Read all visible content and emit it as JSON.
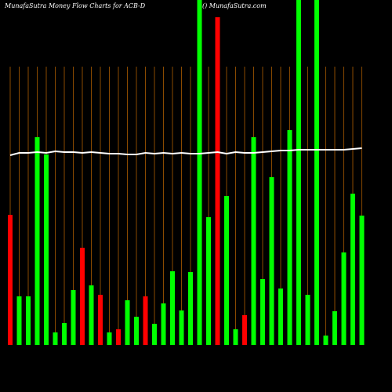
{
  "chart_data": {
    "type": "bar",
    "title": "MunafaSutra  Money Flow  Charts for ACB-D",
    "subtitle": "() MunafaSutra.com",
    "background": "#000000",
    "grid": true,
    "grid_color": "#8a4a00",
    "categories": [
      null,
      null,
      null,
      null,
      null,
      null,
      null,
      null,
      null,
      null,
      null,
      null,
      null,
      null,
      null,
      null,
      null,
      null,
      null,
      null,
      null,
      null,
      null,
      null,
      null,
      null,
      null,
      null,
      null,
      null,
      null,
      null,
      null,
      null,
      null,
      null,
      null,
      null,
      null,
      null
    ],
    "ylim": [
      0,
      440
    ],
    "series": [
      {
        "type": "bar",
        "values": [
          166,
          62,
          62,
          265,
          243,
          16,
          28,
          70,
          124,
          76,
          64,
          16,
          20,
          57,
          36,
          62,
          27,
          53,
          94,
          44,
          93,
          440,
          163,
          418,
          190,
          20,
          38,
          265,
          84,
          214,
          72,
          274,
          440,
          64,
          440,
          12,
          43,
          118,
          193,
          165
        ],
        "colors": [
          "#ff0000",
          "#00ff00",
          "#00ff00",
          "#00ff00",
          "#00ff00",
          "#00ff00",
          "#00ff00",
          "#00ff00",
          "#ff0000",
          "#00ff00",
          "#ff0000",
          "#00ff00",
          "#ff0000",
          "#00ff00",
          "#00ff00",
          "#ff0000",
          "#00ff00",
          "#00ff00",
          "#00ff00",
          "#00ff00",
          "#00ff00",
          "#00ff00",
          "#00ff00",
          "#ff0000",
          "#00ff00",
          "#00ff00",
          "#ff0000",
          "#00ff00",
          "#00ff00",
          "#00ff00",
          "#00ff00",
          "#00ff00",
          "#00ff00",
          "#00ff00",
          "#00ff00",
          "#00ff00",
          "#00ff00",
          "#00ff00",
          "#00ff00",
          "#00ff00"
        ]
      },
      {
        "type": "line",
        "color": "#ffffff",
        "values": [
          242,
          245,
          245,
          246,
          245,
          247,
          246,
          246,
          245,
          246,
          245,
          244,
          244,
          243,
          243,
          245,
          244,
          245,
          244,
          245,
          244,
          244,
          245,
          246,
          244,
          246,
          245,
          245,
          246,
          247,
          248,
          248,
          249,
          249,
          249,
          249,
          249,
          249,
          250,
          251
        ]
      }
    ]
  }
}
